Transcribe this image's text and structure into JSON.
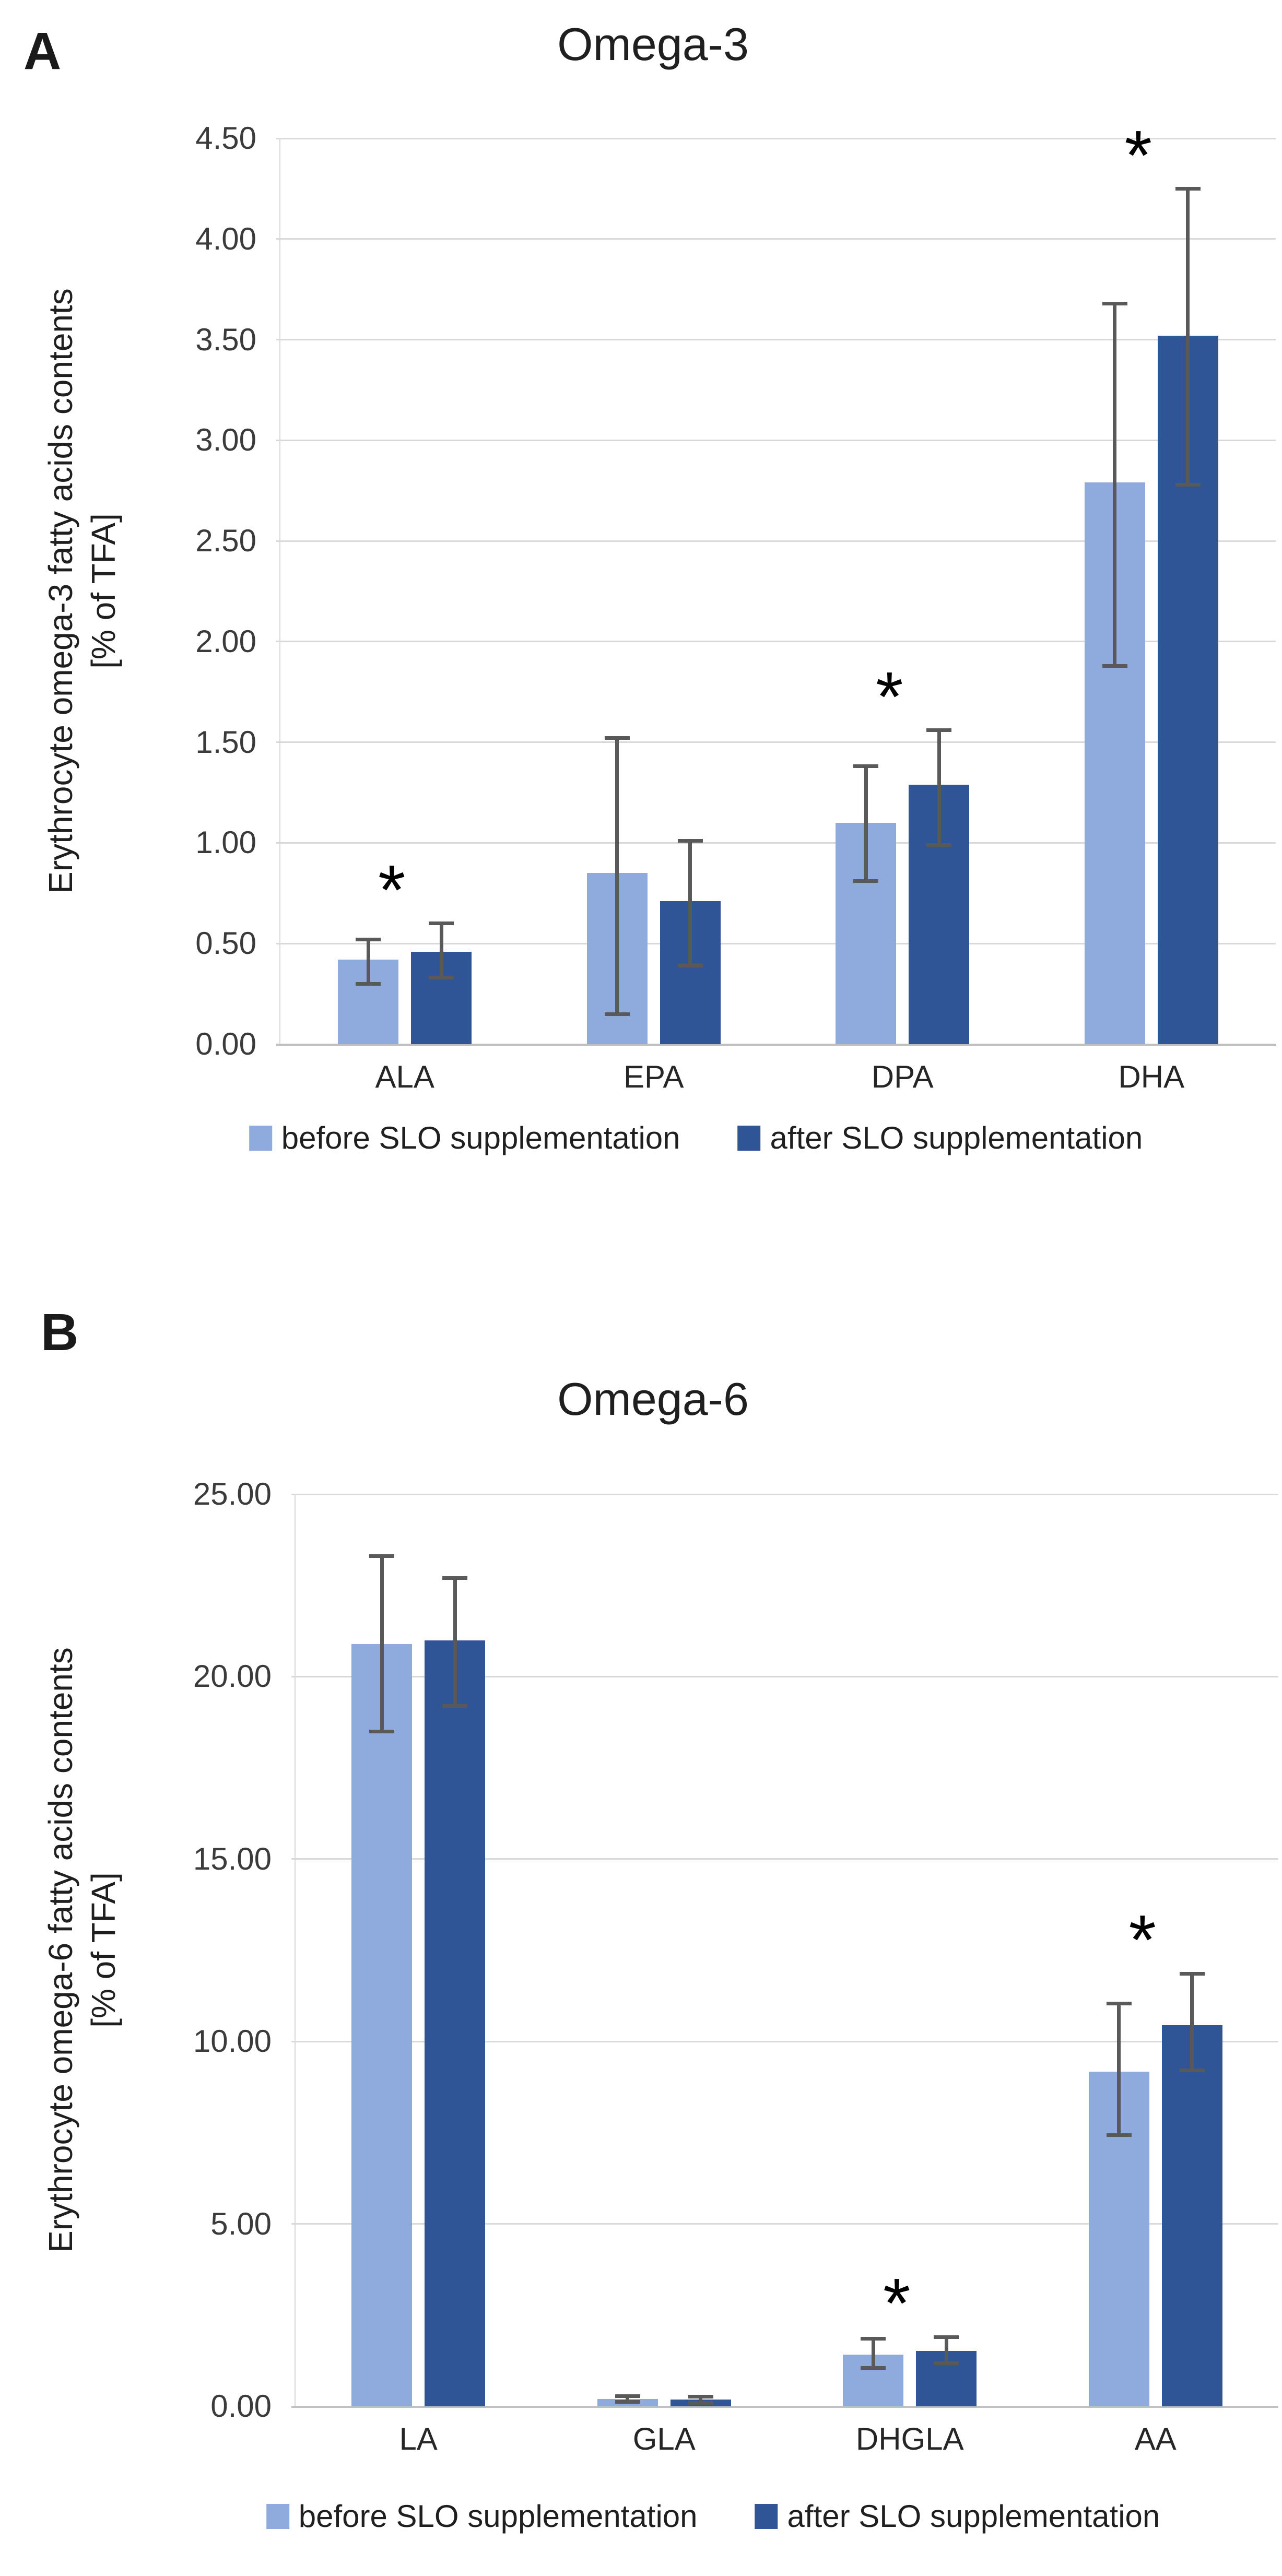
{
  "colors": {
    "series_before": "#8FAADC",
    "series_after": "#2F5597",
    "gridline": "#D9D9D9",
    "baseline": "#BFBFBF",
    "error_bar": "#595959",
    "text": "#262626"
  },
  "chart_data": [
    {
      "type": "bar",
      "panel_label": "A",
      "title": "Omega-3",
      "ylabel_line1": "Erythrocyte omega-3 fatty acids contents",
      "ylabel_line2": "[% of TFA]",
      "categories": [
        "ALA",
        "EPA",
        "DPA",
        "DHA"
      ],
      "ylim": [
        0,
        4.5
      ],
      "yticks": [
        "0.00",
        "0.50",
        "1.00",
        "1.50",
        "2.00",
        "2.50",
        "3.00",
        "3.50",
        "4.00",
        "4.50"
      ],
      "grid": true,
      "legend_position": "bottom",
      "significant": [
        true,
        false,
        true,
        true
      ],
      "significance_marker": "*",
      "series": [
        {
          "name": "before SLO supplementation",
          "color": "#8FAADC",
          "values": [
            0.42,
            0.85,
            1.1,
            2.79
          ],
          "whisker_low": [
            0.3,
            0.15,
            0.81,
            1.88
          ],
          "whisker_high": [
            0.52,
            1.52,
            1.38,
            3.68
          ]
        },
        {
          "name": "after SLO supplementation",
          "color": "#2F5597",
          "values": [
            0.46,
            0.71,
            1.29,
            3.52
          ],
          "whisker_low": [
            0.33,
            0.39,
            0.99,
            2.78
          ],
          "whisker_high": [
            0.6,
            1.01,
            1.56,
            4.25
          ]
        }
      ]
    },
    {
      "type": "bar",
      "panel_label": "B",
      "title": "Omega-6",
      "ylabel_line1": "Erythrocyte omega-6 fatty acids contents",
      "ylabel_line2": "[% of TFA]",
      "categories": [
        "LA",
        "GLA",
        "DHGLA",
        "AA"
      ],
      "ylim": [
        0,
        25
      ],
      "yticks": [
        "0.00",
        "5.00",
        "10.00",
        "15.00",
        "20.00",
        "25.00"
      ],
      "grid": true,
      "legend_position": "bottom",
      "significant": [
        false,
        false,
        true,
        true
      ],
      "significance_marker": "*",
      "series": [
        {
          "name": "before SLO supplementation",
          "color": "#8FAADC",
          "values": [
            20.9,
            0.2,
            1.41,
            9.17
          ],
          "whisker_low": [
            18.5,
            0.12,
            1.05,
            7.43
          ],
          "whisker_high": [
            23.3,
            0.28,
            1.86,
            11.04
          ]
        },
        {
          "name": "after SLO supplementation",
          "color": "#2F5597",
          "values": [
            21.0,
            0.18,
            1.51,
            10.45
          ],
          "whisker_low": [
            19.2,
            0.1,
            1.18,
            9.21
          ],
          "whisker_high": [
            22.7,
            0.26,
            1.9,
            11.86
          ]
        }
      ]
    }
  ]
}
